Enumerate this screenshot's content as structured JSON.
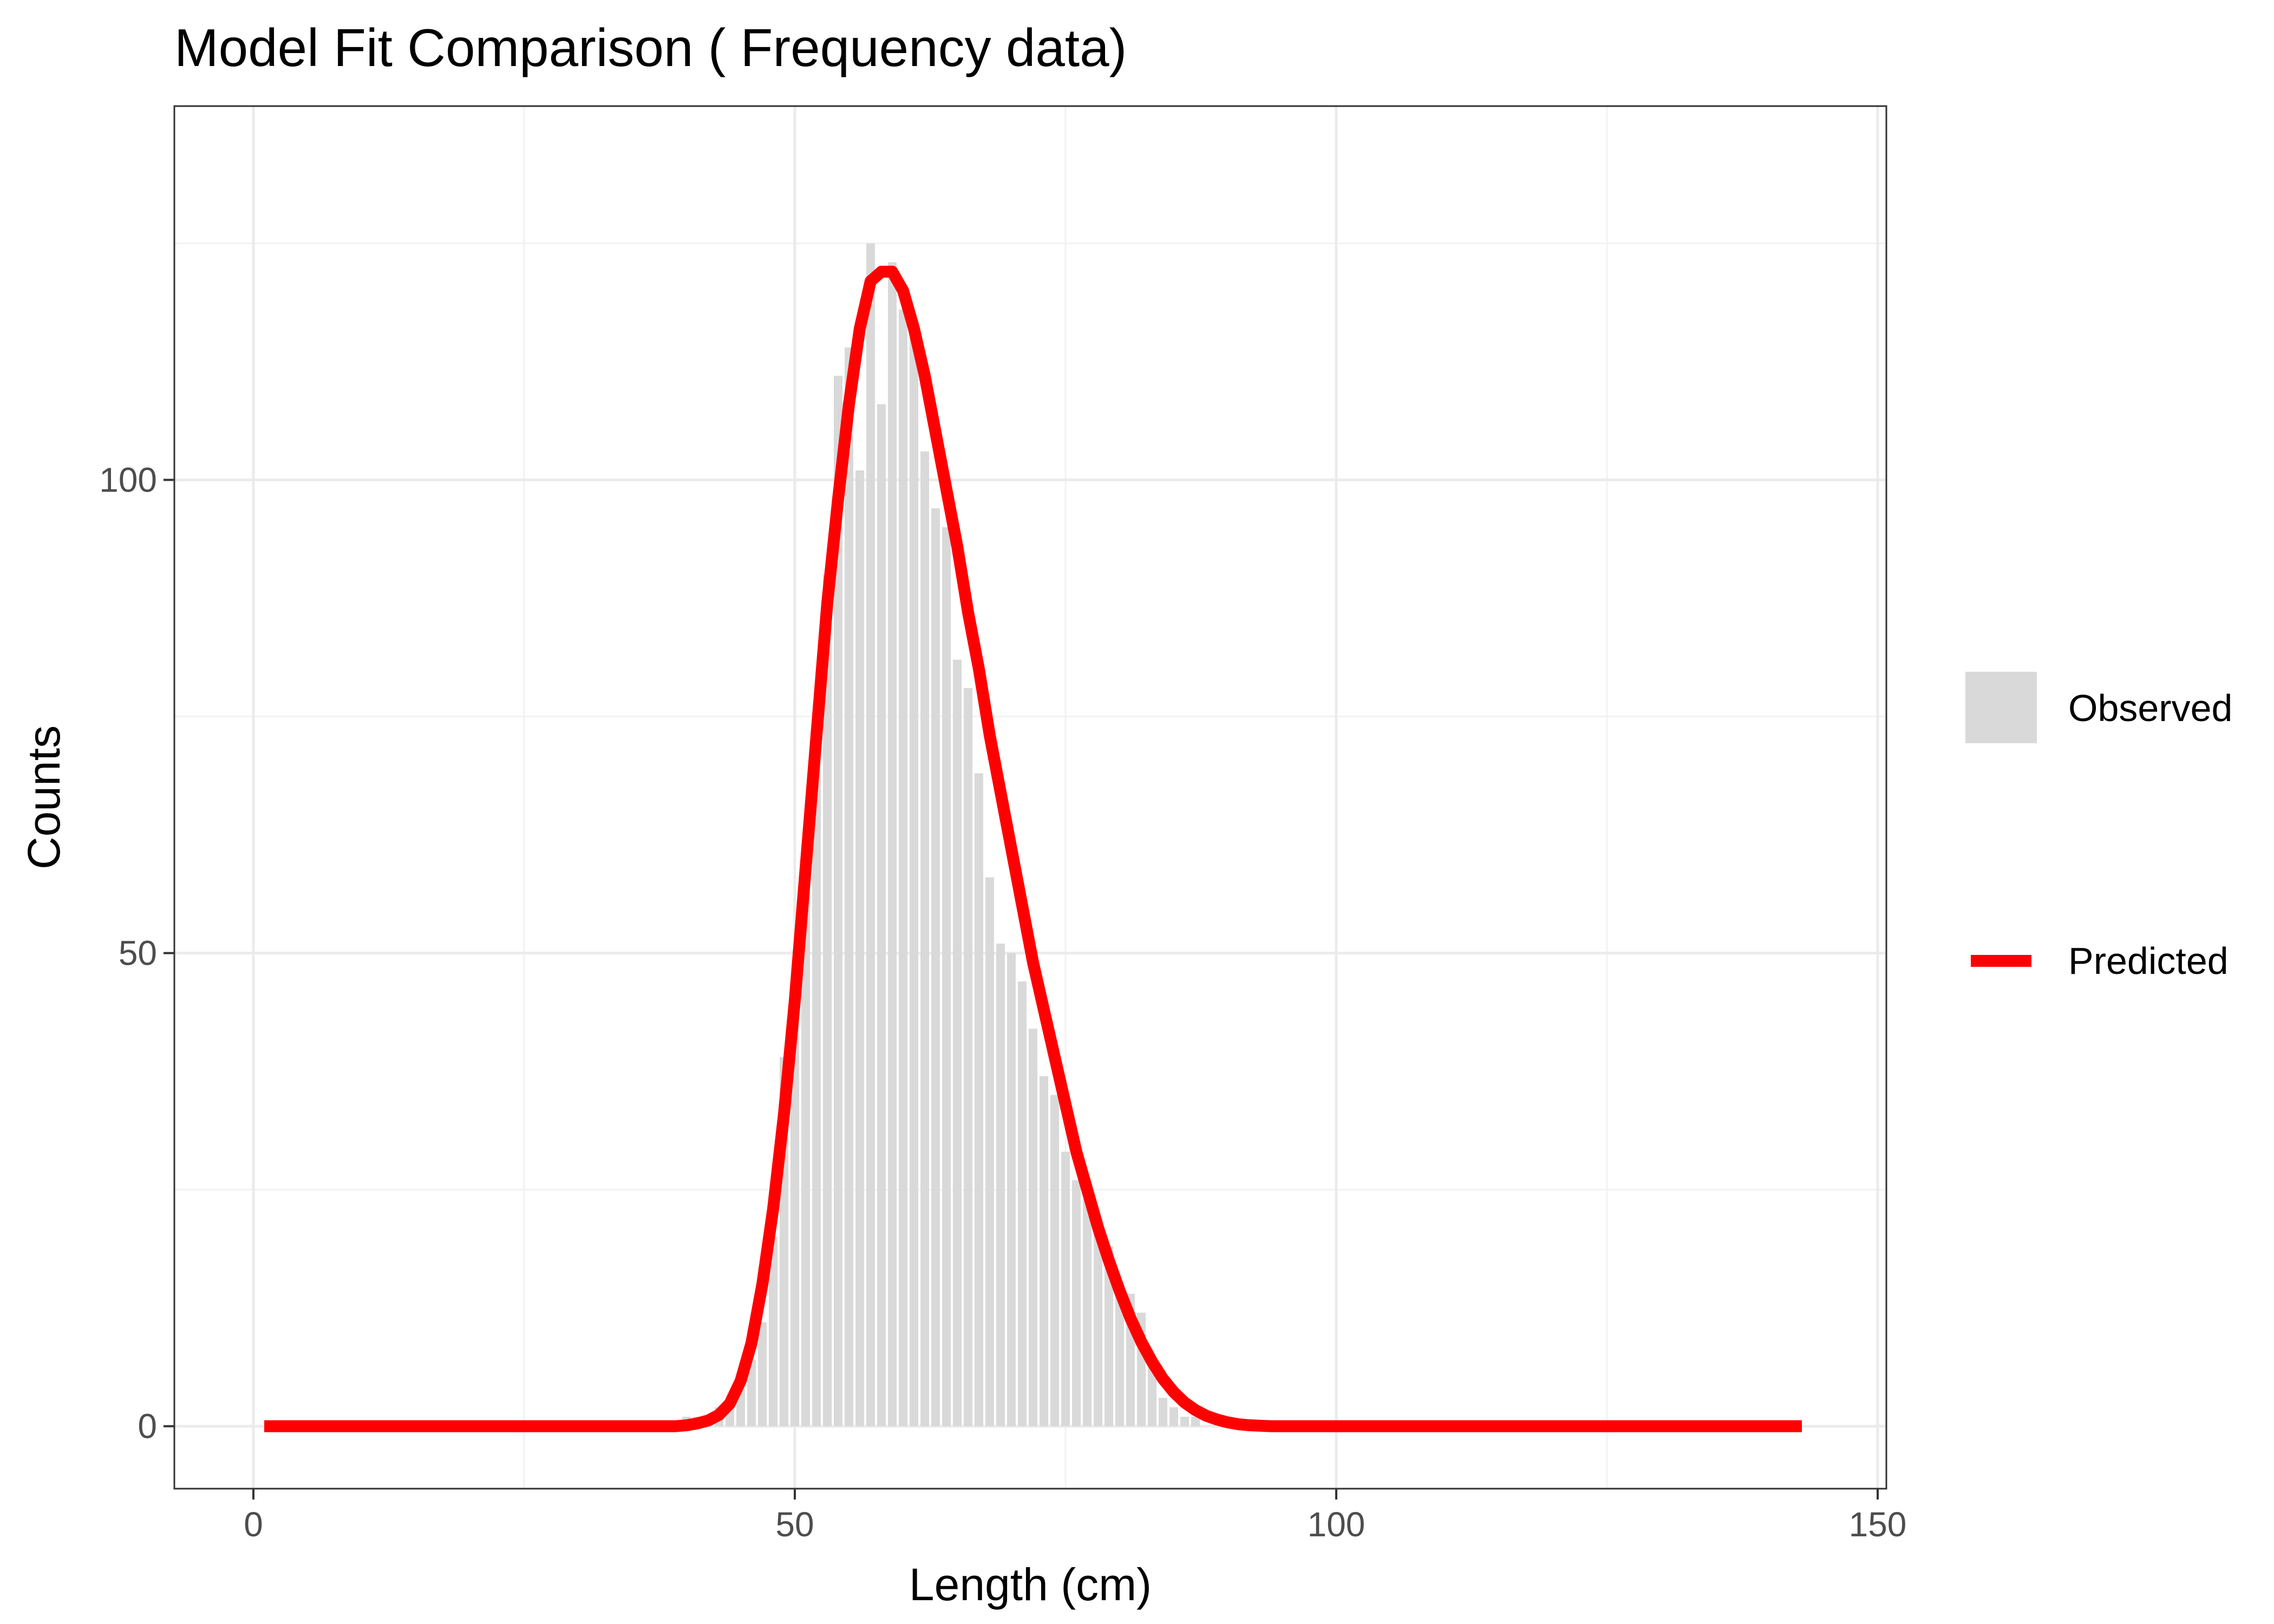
{
  "chart_data": {
    "type": "bar",
    "title": "Model Fit Comparison ( Frequency data)",
    "xlabel": "Length (cm)",
    "ylabel": "Counts",
    "xlim": [
      -7.3,
      150.8
    ],
    "ylim": [
      -6.6,
      139.5
    ],
    "x_ticks": [
      0,
      50,
      100,
      150
    ],
    "y_ticks": [
      0,
      50,
      100
    ],
    "grid": true,
    "legend_position": "right",
    "bin_width": 1,
    "series": [
      {
        "name": "Observed",
        "kind": "bar",
        "color": "#d9d9d9",
        "x": [
          39,
          40,
          41,
          42,
          43,
          44,
          45,
          46,
          47,
          48,
          49,
          50,
          51,
          52,
          53,
          54,
          55,
          56,
          57,
          58,
          59,
          60,
          61,
          62,
          63,
          64,
          65,
          66,
          67,
          68,
          69,
          70,
          71,
          72,
          73,
          74,
          75,
          76,
          77,
          78,
          79,
          80,
          81,
          82,
          83,
          84,
          85,
          86,
          87,
          88,
          89,
          90
        ],
        "values": [
          0,
          1,
          1,
          1,
          2,
          3,
          4,
          7,
          11,
          20,
          39,
          47,
          58,
          73,
          90,
          111,
          114,
          101,
          125,
          108,
          123,
          118,
          117,
          103,
          97,
          95,
          81,
          78,
          69,
          58,
          51,
          50,
          47,
          42,
          37,
          35,
          29,
          26,
          24,
          22,
          19,
          15,
          14,
          12,
          7,
          3,
          2,
          1,
          1,
          0,
          0,
          0
        ]
      },
      {
        "name": "Predicted",
        "kind": "line",
        "color": "#ff0000",
        "x": [
          1,
          39,
          40,
          41,
          42,
          43,
          44,
          45,
          46,
          47,
          48,
          49,
          50,
          51,
          52,
          53,
          54,
          55,
          56,
          57,
          58,
          59,
          60,
          61,
          62,
          63,
          64,
          65,
          66,
          67,
          68,
          69,
          70,
          71,
          72,
          73,
          74,
          75,
          76,
          77,
          78,
          79,
          80,
          81,
          82,
          83,
          84,
          85,
          86,
          87,
          88,
          89,
          90,
          91,
          92,
          93,
          94,
          95,
          96,
          143
        ],
        "values": [
          0,
          0,
          0.1,
          0.3,
          0.6,
          1.2,
          2.4,
          4.8,
          8.8,
          15,
          23,
          33,
          45,
          59,
          73,
          87,
          98,
          108,
          116,
          121,
          122,
          122,
          120,
          116,
          111,
          105,
          99,
          93,
          86,
          80,
          73,
          67,
          61,
          55,
          49,
          44,
          39,
          34,
          29,
          25,
          21,
          17.5,
          14.3,
          11.4,
          8.9,
          6.8,
          5,
          3.6,
          2.5,
          1.7,
          1.1,
          0.7,
          0.4,
          0.2,
          0.1,
          0.05,
          0,
          0,
          0,
          0
        ]
      }
    ]
  }
}
